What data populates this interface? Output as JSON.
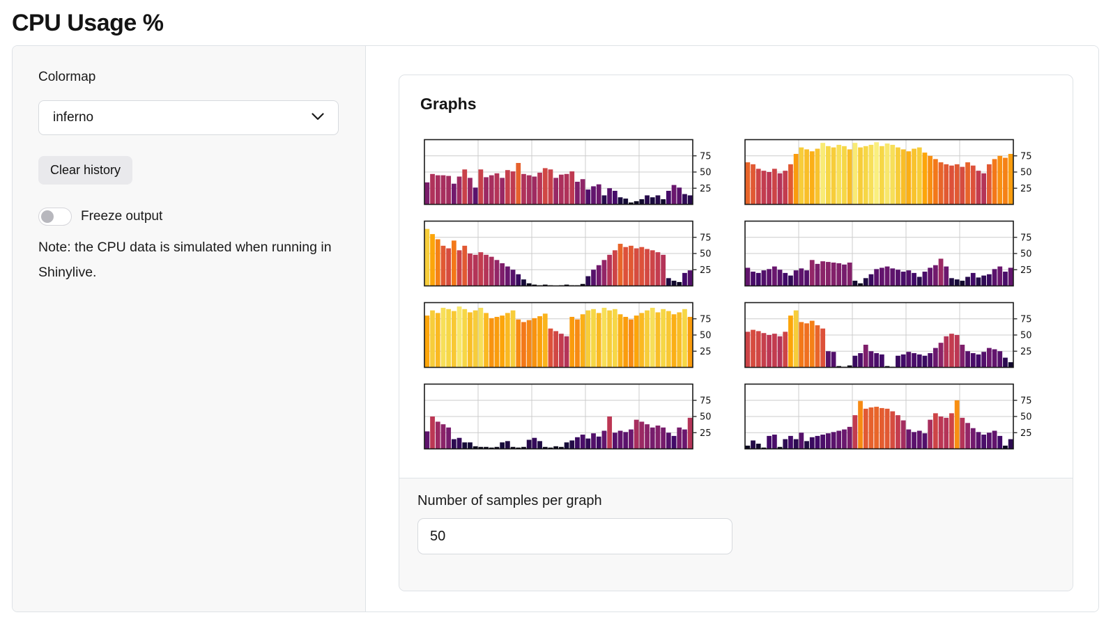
{
  "page_title": "CPU Usage %",
  "sidebar": {
    "colormap_label": "Colormap",
    "colormap_value": "inferno",
    "clear_button_label": "Clear history",
    "freeze_label": "Freeze output",
    "note": "Note: the CPU data is simulated when running in Shinylive.",
    "freeze_toggle_state": "off"
  },
  "main": {
    "card_title": "Graphs",
    "samples_label": "Number of samples per graph",
    "samples_value": "50"
  },
  "colors": {
    "sidebar_bg": "#f8f8f8",
    "border": "#dee2e6",
    "button_bg": "#e9e9ec",
    "chart_grid": "#cccccc",
    "chart_spine": "#1a1a1a"
  },
  "chart_data": {
    "type": "bar",
    "title": "Graphs",
    "colormap": "inferno",
    "samples_per_graph": 50,
    "ylim": [
      0,
      100
    ],
    "yticks": [
      25,
      50,
      75
    ],
    "ytick_side": "right",
    "grid": true,
    "layout": "2 columns x 4 rows",
    "charts": [
      {
        "name": "cpu-graph-1",
        "values": [
          34,
          47,
          45,
          45,
          44,
          32,
          43,
          54,
          41,
          26,
          54,
          42,
          45,
          48,
          41,
          53,
          51,
          64,
          47,
          45,
          43,
          49,
          56,
          54,
          41,
          46,
          47,
          51,
          35,
          39,
          23,
          28,
          31,
          14,
          25,
          21,
          11,
          9,
          3,
          5,
          8,
          14,
          11,
          14,
          8,
          21,
          30,
          26,
          16,
          14
        ]
      },
      {
        "name": "cpu-graph-2",
        "values": [
          65,
          62,
          55,
          52,
          50,
          55,
          48,
          52,
          62,
          78,
          88,
          85,
          82,
          86,
          95,
          90,
          88,
          92,
          90,
          85,
          95,
          88,
          90,
          92,
          96,
          90,
          94,
          92,
          88,
          85,
          82,
          86,
          88,
          80,
          75,
          70,
          65,
          62,
          60,
          62,
          58,
          65,
          60,
          52,
          48,
          62,
          70,
          75,
          72,
          78
        ]
      },
      {
        "name": "cpu-graph-3",
        "values": [
          88,
          80,
          72,
          62,
          58,
          70,
          55,
          62,
          50,
          48,
          52,
          48,
          45,
          40,
          35,
          30,
          25,
          18,
          10,
          4,
          2,
          1,
          2,
          1,
          0,
          1,
          2,
          1,
          1,
          3,
          15,
          25,
          32,
          40,
          48,
          55,
          65,
          60,
          62,
          58,
          60,
          57,
          55,
          52,
          48,
          12,
          8,
          6,
          20,
          24
        ]
      },
      {
        "name": "cpu-graph-4",
        "values": [
          28,
          22,
          20,
          24,
          26,
          30,
          25,
          20,
          16,
          24,
          27,
          24,
          40,
          34,
          38,
          37,
          36,
          35,
          33,
          36,
          8,
          4,
          12,
          18,
          26,
          28,
          30,
          27,
          25,
          22,
          24,
          20,
          14,
          22,
          28,
          32,
          42,
          30,
          12,
          10,
          8,
          14,
          20,
          13,
          16,
          18,
          26,
          30,
          22,
          28
        ]
      },
      {
        "name": "cpu-graph-5",
        "values": [
          80,
          88,
          84,
          92,
          90,
          87,
          94,
          90,
          85,
          88,
          92,
          84,
          76,
          78,
          80,
          84,
          88,
          74,
          70,
          73,
          76,
          79,
          83,
          60,
          56,
          52,
          48,
          78,
          74,
          82,
          88,
          90,
          84,
          92,
          88,
          90,
          82,
          78,
          74,
          80,
          84,
          88,
          92,
          85,
          90,
          87,
          82,
          85,
          90,
          78
        ]
      },
      {
        "name": "cpu-graph-6",
        "values": [
          55,
          58,
          56,
          53,
          50,
          52,
          48,
          55,
          80,
          88,
          70,
          68,
          72,
          65,
          60,
          25,
          24,
          2,
          1,
          3,
          18,
          22,
          35,
          25,
          22,
          20,
          2,
          1,
          18,
          20,
          24,
          22,
          20,
          18,
          22,
          30,
          38,
          48,
          52,
          50,
          35,
          25,
          22,
          20,
          24,
          30,
          28,
          25,
          15,
          8
        ]
      },
      {
        "name": "cpu-graph-7",
        "values": [
          27,
          50,
          42,
          38,
          33,
          15,
          17,
          10,
          10,
          4,
          3,
          3,
          2,
          3,
          10,
          12,
          3,
          2,
          3,
          14,
          17,
          12,
          3,
          2,
          4,
          3,
          10,
          13,
          18,
          22,
          16,
          24,
          19,
          28,
          50,
          25,
          28,
          26,
          30,
          45,
          42,
          38,
          33,
          36,
          33,
          25,
          20,
          33,
          30,
          48
        ]
      },
      {
        "name": "cpu-graph-8",
        "values": [
          5,
          13,
          8,
          2,
          20,
          22,
          3,
          15,
          20,
          15,
          25,
          12,
          18,
          20,
          22,
          24,
          26,
          28,
          30,
          34,
          52,
          74,
          62,
          64,
          65,
          63,
          62,
          58,
          52,
          44,
          30,
          26,
          28,
          24,
          45,
          55,
          50,
          48,
          55,
          75,
          48,
          40,
          32,
          26,
          22,
          25,
          28,
          20,
          5,
          15
        ]
      }
    ]
  }
}
